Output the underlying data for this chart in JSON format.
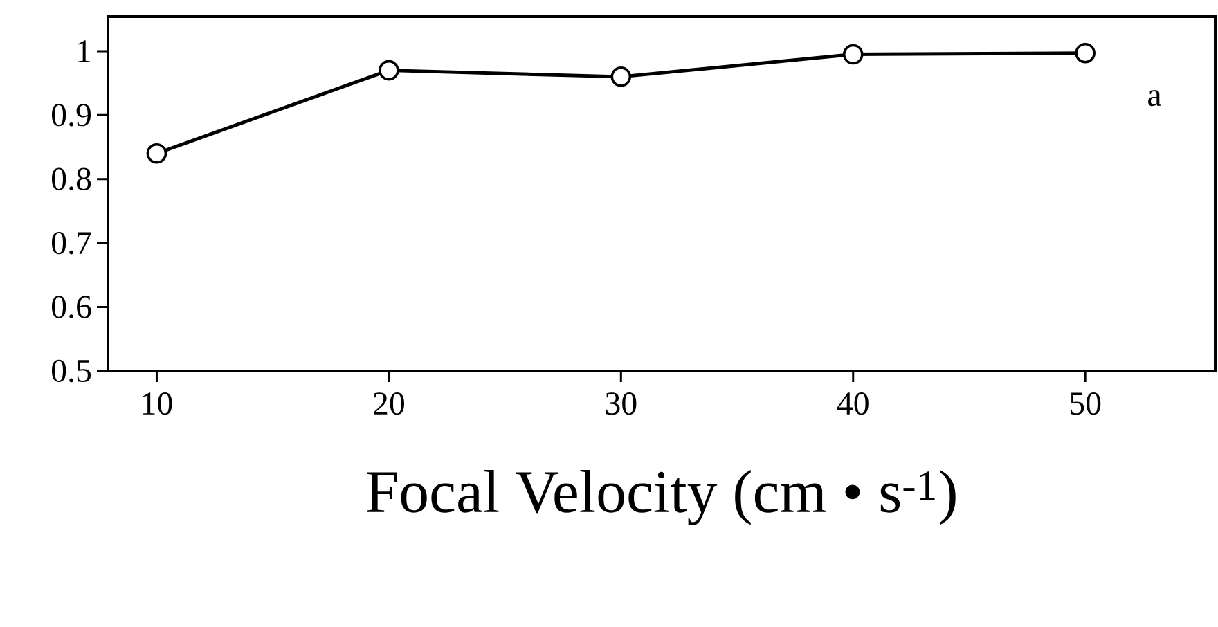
{
  "chart_data": {
    "type": "line",
    "xlabel": "Focal Velocity (cm • s$^{-1}$)",
    "x": [
      10,
      20,
      30,
      40,
      50
    ],
    "series": [
      {
        "color": "#000000",
        "values": [
          0.84,
          0.97,
          0.96,
          0.995,
          0.997
        ]
      }
    ],
    "xlim": [
      7.9,
      55.6
    ],
    "ylim": [
      0.5,
      1.054
    ],
    "xticks": [
      10,
      20,
      30,
      40,
      50
    ],
    "yticks": [
      0.5,
      0.6,
      0.7,
      0.8,
      0.9,
      1
    ],
    "marker": "circle",
    "line_style": "solid",
    "grid": false,
    "annotations": [
      "a"
    ]
  }
}
